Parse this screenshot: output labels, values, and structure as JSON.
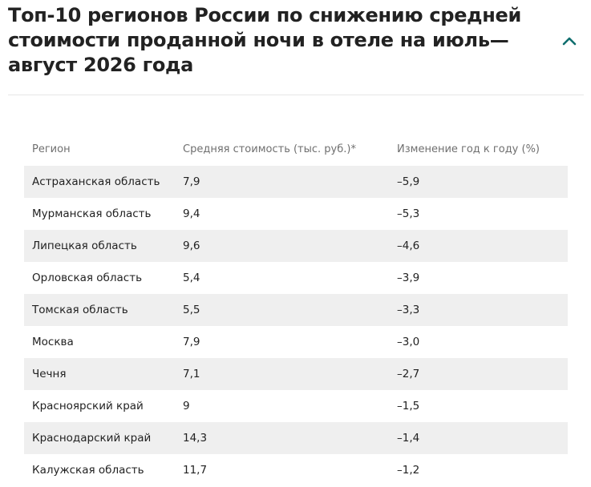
{
  "article": {
    "title": "Топ-10 регионов России по снижению средней стоимости проданной ночи в отеле на июль—август 2026 года",
    "toggle_icon": "chevron-up-icon",
    "accent_color": "#0f6e6e"
  },
  "table": {
    "columns": [
      "Регион",
      "Средняя стоимость (тыс. руб.)*",
      "Изменение год к году (%)"
    ],
    "rows": [
      [
        "Астраханская область",
        "7,9",
        "–5,9"
      ],
      [
        "Мурманская область",
        "9,4",
        "–5,3"
      ],
      [
        "Липецкая область",
        "9,6",
        "–4,6"
      ],
      [
        "Орловская область",
        "5,4",
        "–3,9"
      ],
      [
        "Томская область",
        "5,5",
        "–3,3"
      ],
      [
        "Москва",
        "7,9",
        "–3,0"
      ],
      [
        "Чечня",
        "7,1",
        "–2,7"
      ],
      [
        "Красноярский край",
        "9",
        "–1,5"
      ],
      [
        "Краснодарский край",
        "14,3",
        "–1,4"
      ],
      [
        "Калужская область",
        "11,7",
        "–1,2"
      ]
    ]
  }
}
